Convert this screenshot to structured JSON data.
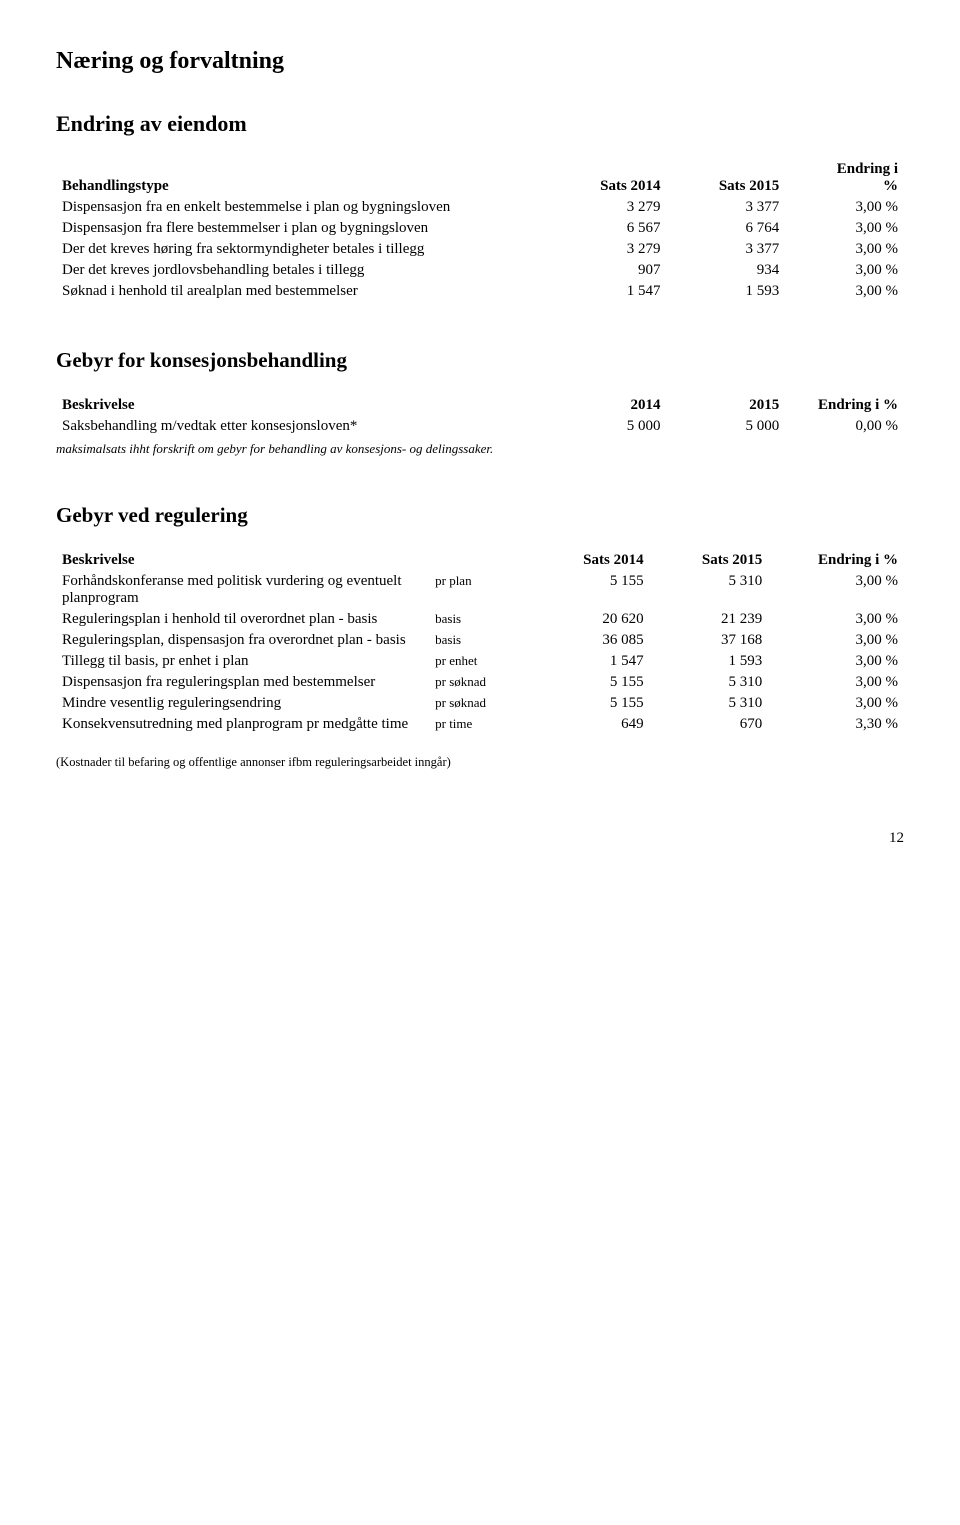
{
  "page": {
    "number": "12"
  },
  "section": {
    "title": "Næring og forvaltning"
  },
  "block1": {
    "title": "Endring av eiendom",
    "headers": {
      "c1": "Behandlingstype",
      "c2": "Sats 2014",
      "c3": "Sats 2015",
      "c4_top": "Endring i",
      "c4_bot": "%"
    },
    "rows": [
      {
        "desc": "Dispensasjon fra en enkelt bestemmelse i plan og bygningsloven",
        "v2014": "3 279",
        "v2015": "3 377",
        "chg": "3,00 %"
      },
      {
        "desc": "Dispensasjon fra flere bestemmelser i plan og bygningsloven",
        "v2014": "6 567",
        "v2015": "6 764",
        "chg": "3,00 %"
      },
      {
        "desc": "Der det kreves høring fra sektormyndigheter betales i tillegg",
        "v2014": "3 279",
        "v2015": "3 377",
        "chg": "3,00 %"
      },
      {
        "desc": "Der det kreves jordlovsbehandling betales i tillegg",
        "v2014": "907",
        "v2015": "934",
        "chg": "3,00 %"
      },
      {
        "desc": "Søknad i henhold til arealplan med bestemmelser",
        "v2014": "1 547",
        "v2015": "1 593",
        "chg": "3,00 %"
      }
    ]
  },
  "block2": {
    "title": "Gebyr for konsesjonsbehandling",
    "headers": {
      "c1": "Beskrivelse",
      "c2": "2014",
      "c3": "2015",
      "c4": "Endring i %"
    },
    "rows": [
      {
        "desc": "Saksbehandling m/vedtak etter konsesjonsloven*",
        "v2014": "5 000",
        "v2015": "5 000",
        "chg": "0,00 %"
      }
    ],
    "note": "maksimalsats ihht forskrift om gebyr for behandling av konsesjons- og delingssaker."
  },
  "block3": {
    "title": "Gebyr ved regulering",
    "headers": {
      "c1": "Beskrivelse",
      "c3": "Sats 2014",
      "c4": "Sats 2015",
      "c5": "Endring i %"
    },
    "rows": [
      {
        "desc": "Forhåndskonferanse med politisk vurdering og eventuelt planprogram",
        "unit": "pr plan",
        "v2014": "5 155",
        "v2015": "5 310",
        "chg": "3,00 %"
      },
      {
        "desc": "Reguleringsplan i henhold til overordnet plan - basis",
        "unit": "basis",
        "v2014": "20 620",
        "v2015": "21 239",
        "chg": "3,00 %"
      },
      {
        "desc": "Reguleringsplan, dispensasjon fra overordnet plan - basis",
        "unit": "basis",
        "v2014": "36 085",
        "v2015": "37 168",
        "chg": "3,00 %"
      },
      {
        "desc": "Tillegg til basis, pr enhet i plan",
        "unit": "pr enhet",
        "v2014": "1 547",
        "v2015": "1 593",
        "chg": "3,00 %"
      },
      {
        "desc": "Dispensasjon fra reguleringsplan med bestemmelser",
        "unit": "pr søknad",
        "v2014": "5 155",
        "v2015": "5 310",
        "chg": "3,00 %"
      },
      {
        "desc": "Mindre vesentlig reguleringsendring",
        "unit": "pr søknad",
        "v2014": "5 155",
        "v2015": "5 310",
        "chg": "3,00 %"
      },
      {
        "desc": "Konsekvensutredning med planprogram pr medgåtte time",
        "unit": "pr time",
        "v2014": "649",
        "v2015": "670",
        "chg": "3,30 %"
      }
    ],
    "footnote": "(Kostnader til befaring og offentlige annonser ifbm reguleringsarbeidet inngår)"
  }
}
